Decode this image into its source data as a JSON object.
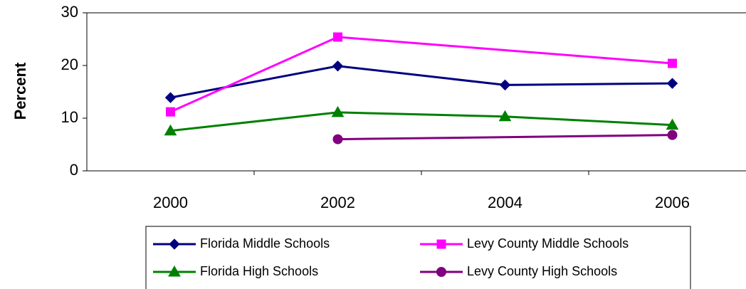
{
  "chart_data": {
    "type": "line",
    "y_label": "Percent",
    "categories": [
      "2000",
      "2002",
      "2004",
      "2006"
    ],
    "series": [
      {
        "name": "Florida Middle Schools",
        "color": "#000080",
        "marker": "diamond",
        "values": [
          13.9,
          19.9,
          16.3,
          16.6
        ]
      },
      {
        "name": "Levy County Middle Schools",
        "color": "#ff00ff",
        "marker": "square",
        "values": [
          11.2,
          25.4,
          null,
          20.4
        ]
      },
      {
        "name": "Florida High Schools",
        "color": "#008000",
        "marker": "triangle",
        "values": [
          7.6,
          11.1,
          10.3,
          8.7
        ]
      },
      {
        "name": "Levy County High Schools",
        "color": "#800080",
        "marker": "circle",
        "values": [
          null,
          6.0,
          null,
          6.8
        ]
      }
    ],
    "connect_gaps": true,
    "ylim": [
      0,
      30
    ],
    "yticks": [
      0,
      10,
      20,
      30
    ],
    "grid": false,
    "legend": "bottom"
  }
}
